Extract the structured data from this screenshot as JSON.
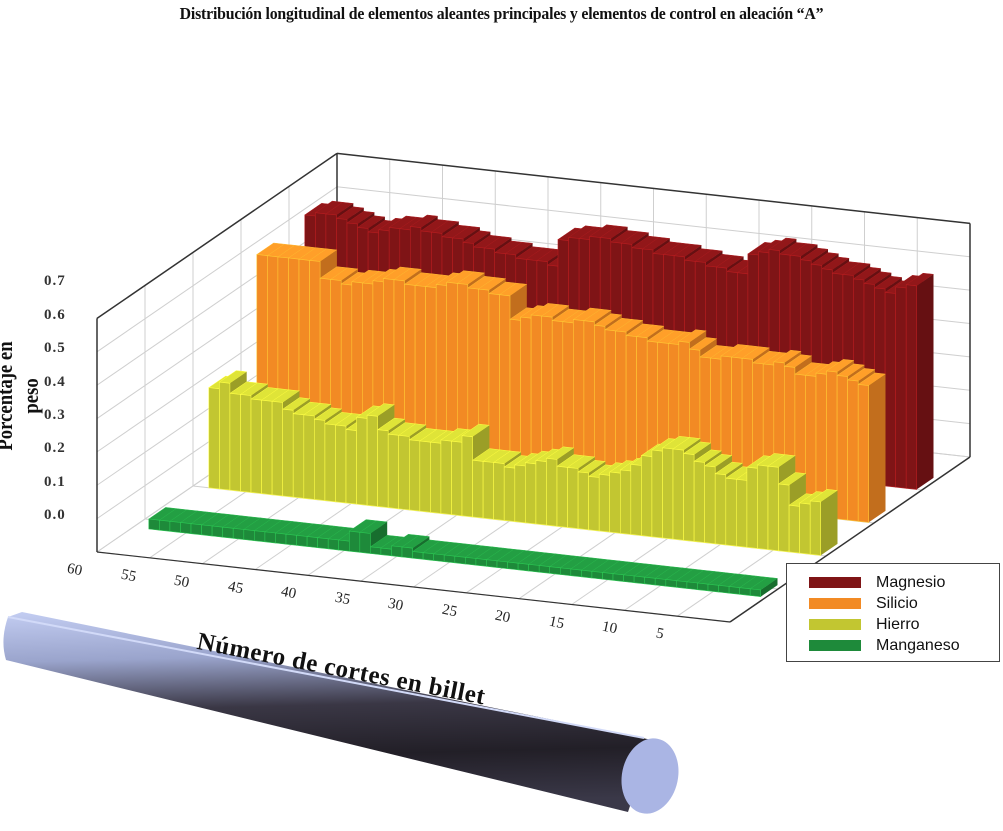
{
  "title": "Distribución longitudinal de elementos aleantes principales y elementos de control en aleación “A”",
  "yaxis": {
    "label": "Porcentaje en peso",
    "ticks": [
      "0.7",
      "0.6",
      "0.5",
      "0.4",
      "0.3",
      "0.2",
      "0.1",
      "0.0"
    ]
  },
  "xaxis": {
    "label": "Número de cortes en billet",
    "ticks": [
      "60",
      "55",
      "50",
      "45",
      "40",
      "35",
      "30",
      "25",
      "20",
      "15",
      "10",
      "5"
    ]
  },
  "legend": {
    "items": [
      {
        "label": "Magnesio",
        "color": "#7f1416"
      },
      {
        "label": "Silicio",
        "color": "#f28a24"
      },
      {
        "label": "Hierro",
        "color": "#c2c631"
      },
      {
        "label": "Manganeso",
        "color": "#1e8a3a"
      }
    ]
  },
  "image": {
    "name": "billet-cylinder",
    "color_light": "#b8c4ec",
    "color_dark": "#2a2730"
  },
  "chart_data": {
    "type": "bar",
    "subtype": "3d-bar-ribbons",
    "title": "Distribución longitudinal de elementos aleantes principales y elementos de control en aleación “A”",
    "xlabel": "Número de cortes en billet",
    "ylabel": "Porcentaje en peso",
    "ylim": [
      0.0,
      0.7
    ],
    "xlim": [
      60,
      1
    ],
    "x_ticks": [
      60,
      55,
      50,
      45,
      40,
      35,
      30,
      25,
      20,
      15,
      10,
      5
    ],
    "y_ticks": [
      0.0,
      0.1,
      0.2,
      0.3,
      0.4,
      0.5,
      0.6,
      0.7
    ],
    "grid": true,
    "legend_position": "lower right",
    "x": [
      58,
      57,
      56,
      55,
      54,
      53,
      52,
      51,
      50,
      49,
      48,
      47,
      46,
      45,
      44,
      43,
      42,
      41,
      40,
      39,
      38,
      37,
      36,
      35,
      34,
      33,
      32,
      31,
      30,
      29,
      28,
      27,
      26,
      25,
      24,
      23,
      22,
      21,
      20,
      19,
      18,
      17,
      16,
      15,
      14,
      13,
      12,
      11,
      10,
      9,
      8,
      7,
      6,
      5,
      4,
      3,
      2,
      1
    ],
    "series": [
      {
        "name": "Magnesio",
        "color": "#7f1416",
        "values": [
          0.62,
          0.63,
          0.63,
          0.62,
          0.61,
          0.6,
          0.59,
          0.6,
          0.61,
          0.61,
          0.62,
          0.61,
          0.61,
          0.6,
          0.6,
          0.59,
          0.58,
          0.58,
          0.57,
          0.57,
          0.56,
          0.56,
          0.56,
          0.55,
          0.63,
          0.64,
          0.64,
          0.65,
          0.65,
          0.64,
          0.64,
          0.63,
          0.63,
          0.62,
          0.62,
          0.62,
          0.61,
          0.61,
          0.6,
          0.6,
          0.59,
          0.59,
          0.65,
          0.66,
          0.67,
          0.66,
          0.66,
          0.65,
          0.64,
          0.63,
          0.62,
          0.62,
          0.61,
          0.6,
          0.59,
          0.58,
          0.6,
          0.61
        ]
      },
      {
        "name": "Silicio",
        "color": "#f28a24",
        "values": [
          0.6,
          0.6,
          0.6,
          0.6,
          0.6,
          0.6,
          0.55,
          0.55,
          0.54,
          0.55,
          0.55,
          0.56,
          0.57,
          0.57,
          0.56,
          0.56,
          0.56,
          0.57,
          0.58,
          0.58,
          0.57,
          0.57,
          0.56,
          0.56,
          0.49,
          0.5,
          0.51,
          0.51,
          0.5,
          0.5,
          0.51,
          0.51,
          0.5,
          0.49,
          0.49,
          0.48,
          0.48,
          0.47,
          0.47,
          0.47,
          0.48,
          0.46,
          0.44,
          0.44,
          0.45,
          0.45,
          0.45,
          0.44,
          0.44,
          0.45,
          0.44,
          0.42,
          0.42,
          0.43,
          0.44,
          0.43,
          0.42,
          0.41
        ]
      },
      {
        "name": "Hierro",
        "color": "#c2c631",
        "values": [
          0.3,
          0.32,
          0.29,
          0.29,
          0.28,
          0.28,
          0.28,
          0.26,
          0.25,
          0.25,
          0.24,
          0.23,
          0.23,
          0.22,
          0.26,
          0.27,
          0.23,
          0.22,
          0.22,
          0.21,
          0.21,
          0.21,
          0.22,
          0.22,
          0.24,
          0.17,
          0.17,
          0.17,
          0.16,
          0.17,
          0.18,
          0.19,
          0.2,
          0.18,
          0.18,
          0.17,
          0.16,
          0.17,
          0.18,
          0.19,
          0.21,
          0.24,
          0.26,
          0.27,
          0.27,
          0.26,
          0.24,
          0.23,
          0.21,
          0.2,
          0.2,
          0.24,
          0.25,
          0.25,
          0.2,
          0.14,
          0.15,
          0.16
        ]
      },
      {
        "name": "Manganeso",
        "color": "#1e8a3a",
        "values": [
          0.03,
          0.03,
          0.03,
          0.03,
          0.03,
          0.03,
          0.03,
          0.03,
          0.03,
          0.03,
          0.03,
          0.03,
          0.03,
          0.03,
          0.03,
          0.03,
          0.03,
          0.03,
          0.03,
          0.06,
          0.06,
          0.02,
          0.02,
          0.03,
          0.03,
          0.02,
          0.02,
          0.02,
          0.02,
          0.02,
          0.02,
          0.02,
          0.02,
          0.02,
          0.02,
          0.02,
          0.02,
          0.02,
          0.02,
          0.02,
          0.02,
          0.02,
          0.02,
          0.02,
          0.02,
          0.02,
          0.02,
          0.02,
          0.02,
          0.02,
          0.02,
          0.02,
          0.02,
          0.02,
          0.02,
          0.02,
          0.02,
          0.02
        ]
      }
    ]
  }
}
